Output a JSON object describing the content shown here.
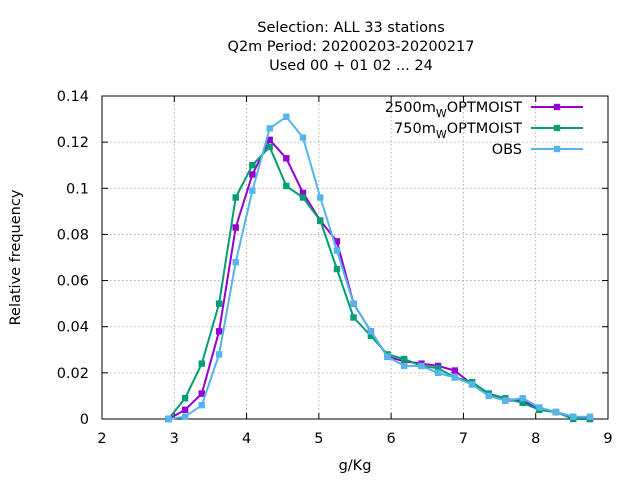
{
  "chart_data": {
    "type": "line",
    "title_lines": [
      "Selection: ALL      33 stations",
      "Q2m  Period: 20200203-20200217",
      "Used  00 + 01 02 ... 24"
    ],
    "xlabel": "g/Kg",
    "ylabel": "Relative frequency",
    "xlim": [
      2,
      9
    ],
    "ylim": [
      0,
      0.14
    ],
    "xticks": [
      2,
      3,
      4,
      5,
      6,
      7,
      8,
      9
    ],
    "xtick_labels": [
      "2",
      "3",
      "4",
      "5",
      "6",
      "7",
      "8",
      "9"
    ],
    "yticks": [
      0,
      0.02,
      0.04,
      0.06,
      0.08,
      0.1,
      0.12,
      0.14
    ],
    "ytick_labels": [
      "0",
      "0.02",
      "0.04",
      "0.06",
      "0.08",
      "0.1",
      "0.12",
      "0.14"
    ],
    "grid": true,
    "legend_position": "top-right",
    "series": [
      {
        "name": "2500m",
        "name_sub": "W",
        "name_rest": "OPTMOIST",
        "color": "#9400d3",
        "marker": "square",
        "x": [
          2.92,
          3.15,
          3.38,
          3.62,
          3.85,
          4.08,
          4.32,
          4.55,
          4.78,
          5.02,
          5.25,
          5.48,
          5.72,
          5.95,
          6.18,
          6.42,
          6.65,
          6.88,
          7.12,
          7.35,
          7.58,
          7.82,
          8.05,
          8.28,
          8.52,
          8.75
        ],
        "y": [
          0.0,
          0.004,
          0.011,
          0.038,
          0.083,
          0.106,
          0.121,
          0.113,
          0.098,
          0.086,
          0.077,
          0.05,
          0.038,
          0.027,
          0.025,
          0.024,
          0.023,
          0.021,
          0.015,
          0.011,
          0.008,
          0.008,
          0.004,
          0.003,
          0.001,
          0.0
        ]
      },
      {
        "name": "750m",
        "name_sub": "W",
        "name_rest": "OPTMOIST",
        "color": "#009e73",
        "marker": "square",
        "x": [
          2.92,
          3.15,
          3.38,
          3.62,
          3.85,
          4.08,
          4.32,
          4.55,
          4.78,
          5.02,
          5.25,
          5.48,
          5.72,
          5.95,
          6.18,
          6.42,
          6.65,
          6.88,
          7.12,
          7.35,
          7.58,
          7.82,
          8.05,
          8.28,
          8.52,
          8.75
        ],
        "y": [
          0.0,
          0.009,
          0.024,
          0.05,
          0.096,
          0.11,
          0.118,
          0.101,
          0.096,
          0.086,
          0.065,
          0.044,
          0.036,
          0.028,
          0.026,
          0.023,
          0.022,
          0.018,
          0.016,
          0.011,
          0.009,
          0.007,
          0.004,
          0.003,
          0.0,
          0.0
        ]
      },
      {
        "name": "OBS",
        "color": "#56b4e9",
        "marker": "square",
        "x": [
          2.92,
          3.15,
          3.38,
          3.62,
          3.85,
          4.08,
          4.32,
          4.55,
          4.78,
          5.02,
          5.25,
          5.48,
          5.72,
          5.95,
          6.18,
          6.42,
          6.65,
          6.88,
          7.12,
          7.35,
          7.58,
          7.82,
          8.05,
          8.28,
          8.52,
          8.75
        ],
        "y": [
          0.0,
          0.001,
          0.006,
          0.028,
          0.068,
          0.099,
          0.126,
          0.131,
          0.122,
          0.096,
          0.073,
          0.05,
          0.038,
          0.027,
          0.023,
          0.023,
          0.02,
          0.018,
          0.015,
          0.01,
          0.008,
          0.009,
          0.005,
          0.003,
          0.001,
          0.001
        ]
      }
    ]
  }
}
